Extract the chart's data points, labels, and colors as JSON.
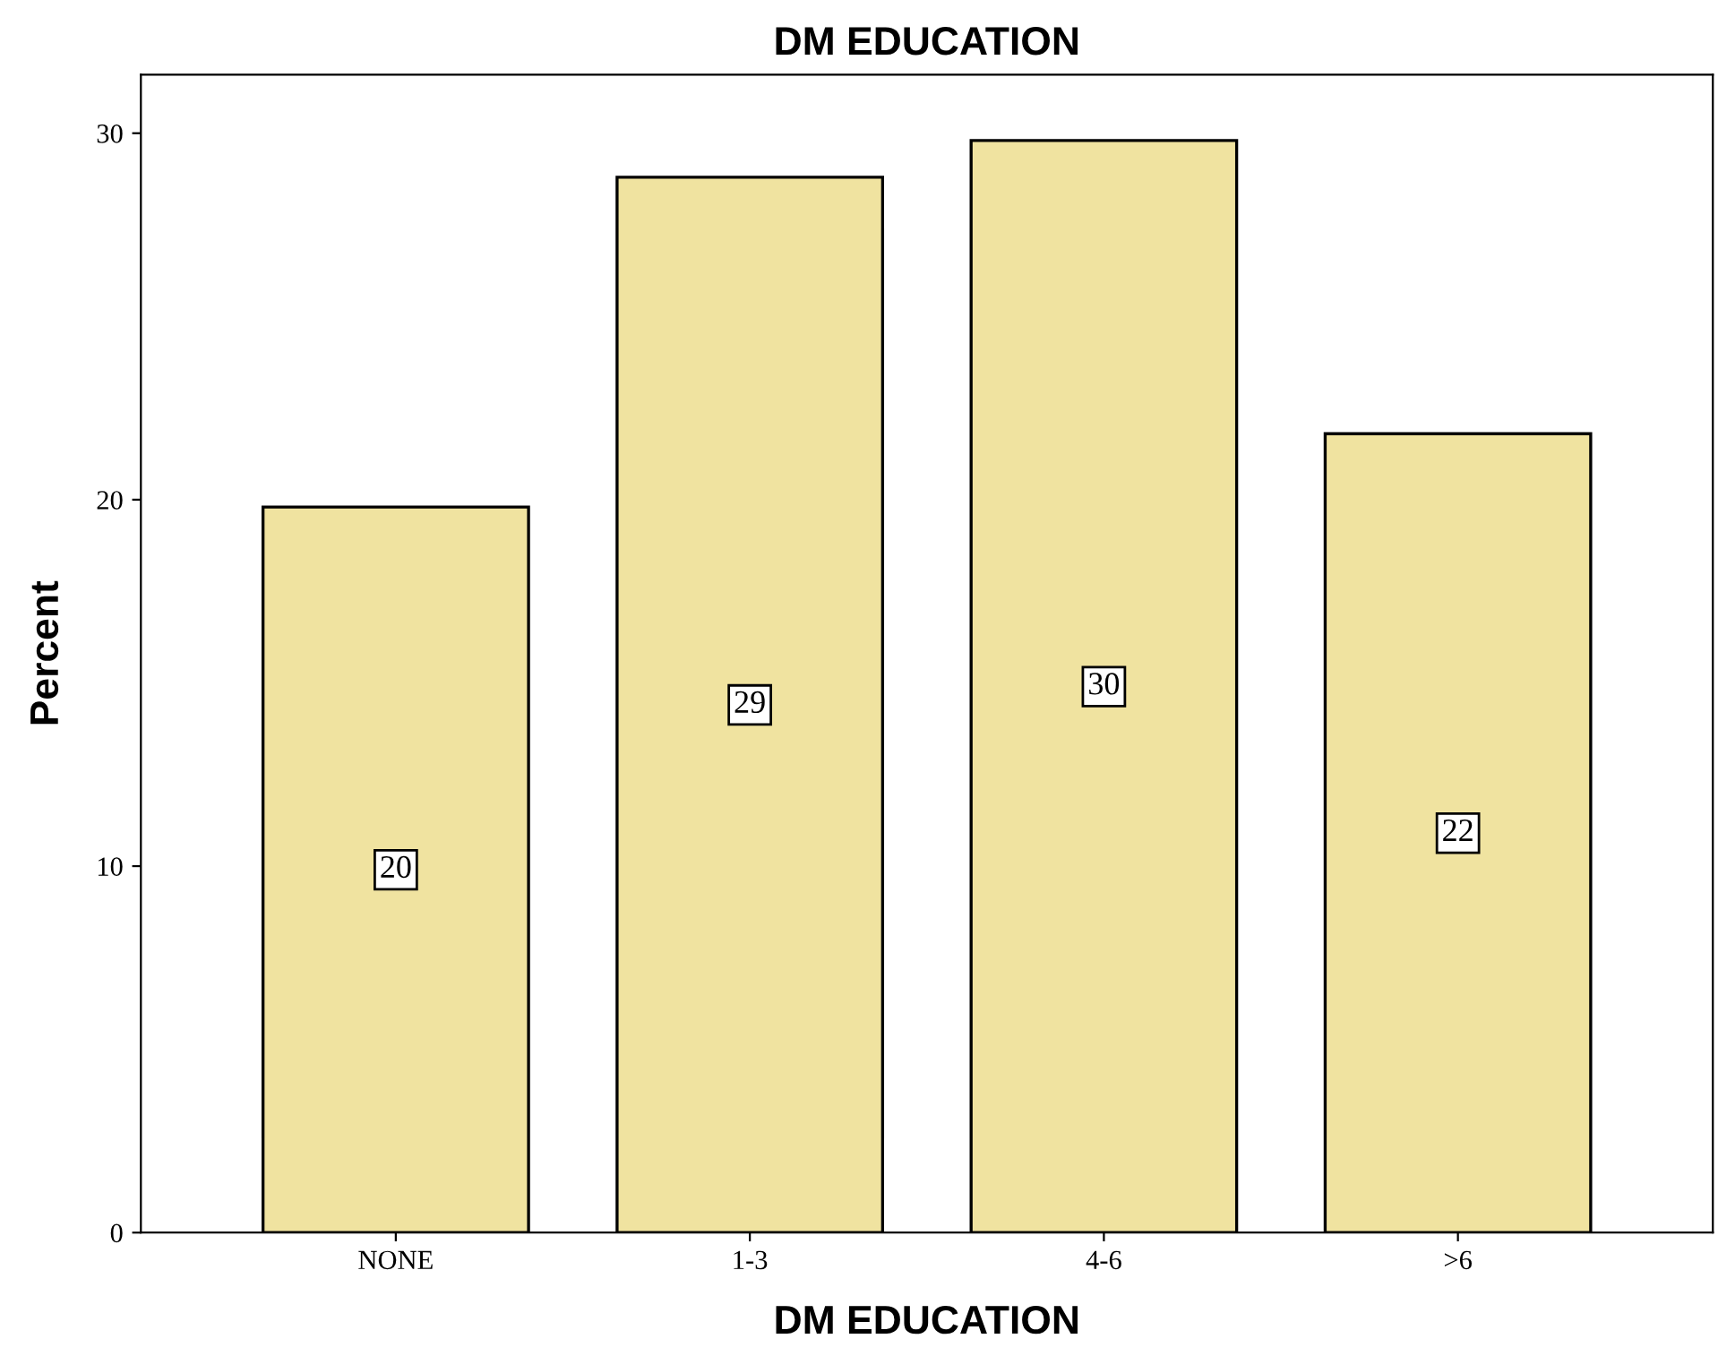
{
  "chart_data": {
    "type": "bar",
    "title": "DM EDUCATION",
    "xlabel": "DM EDUCATION",
    "ylabel": "Percent",
    "categories": [
      "NONE",
      "1-3",
      "4-6",
      ">6"
    ],
    "values": [
      19.8,
      28.8,
      29.8,
      21.8
    ],
    "value_labels": [
      "20",
      "29",
      "30",
      "22"
    ],
    "color": "#f0e3a0",
    "ylim": [
      0,
      31.6
    ],
    "yticks": [
      0,
      10,
      20,
      30
    ],
    "grid": false
  }
}
